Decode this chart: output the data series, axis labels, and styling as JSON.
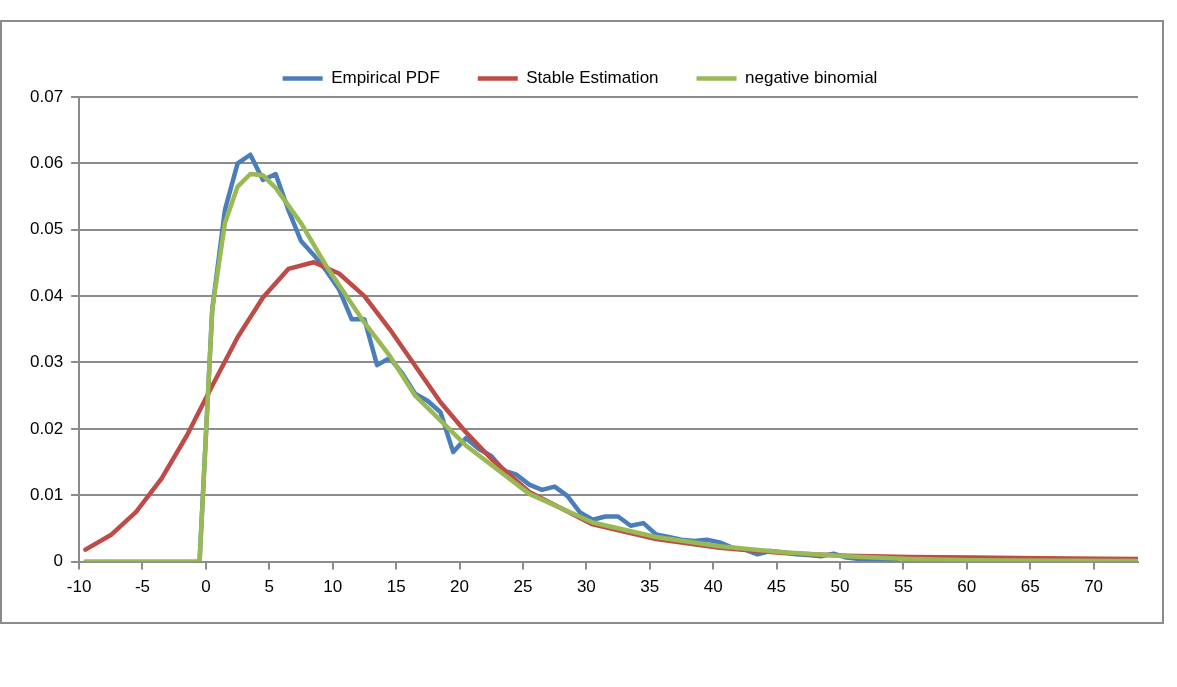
{
  "chart_data": {
    "type": "line",
    "xlim": [
      -10,
      73.5
    ],
    "xticks": [
      -10,
      -5,
      0,
      5,
      10,
      15,
      20,
      25,
      30,
      35,
      40,
      45,
      50,
      55,
      60,
      65,
      70
    ],
    "ylim": [
      0,
      0.07
    ],
    "yticks": [
      0,
      0.01,
      0.02,
      0.03,
      0.04,
      0.05,
      0.06,
      0.07
    ],
    "grid": "y",
    "legend": "top",
    "marker": "none",
    "line_style": "solid",
    "series": [
      {
        "name": "Empirical PDF",
        "color": "#4a7ebb",
        "x": [
          -0.5,
          0.5,
          1.5,
          2.5,
          3.5,
          4.5,
          5.5,
          6.5,
          7.5,
          8.5,
          9.5,
          10.5,
          11.5,
          12.5,
          13.5,
          14.5,
          15.5,
          16.5,
          17.5,
          18.5,
          19.5,
          20.5,
          21.5,
          22.5,
          23.5,
          24.5,
          25.5,
          26.5,
          27.5,
          28.5,
          29.5,
          30.5,
          31.5,
          32.5,
          33.5,
          34.5,
          35.5,
          36.5,
          37.5,
          38.5,
          39.5,
          40.5,
          41.5,
          42.5,
          43.5,
          44.5,
          45.5,
          46.5,
          47.5,
          48.5,
          49.5,
          50.5,
          51.5,
          52.5,
          53.5,
          54.5
        ],
        "values": [
          0,
          0.038,
          0.053,
          0.06,
          0.0613,
          0.0575,
          0.0584,
          0.053,
          0.0483,
          0.0462,
          0.0438,
          0.041,
          0.0365,
          0.0365,
          0.0296,
          0.0307,
          0.0283,
          0.0253,
          0.0242,
          0.0225,
          0.0165,
          0.0186,
          0.017,
          0.0159,
          0.0137,
          0.0131,
          0.0116,
          0.0108,
          0.0113,
          0.0099,
          0.0074,
          0.0063,
          0.0068,
          0.0068,
          0.0054,
          0.0058,
          0.0041,
          0.0037,
          0.0033,
          0.0031,
          0.0033,
          0.0029,
          0.0021,
          0.0018,
          0.0011,
          0.0016,
          0.0014,
          0.0011,
          0.001,
          0.0008,
          0.0012,
          0.0006,
          0.0004,
          0.0003,
          0.0003,
          0.0002
        ]
      },
      {
        "name": "Stable Estimation",
        "color": "#be4b48",
        "x": [
          -9.5,
          -7.5,
          -5.5,
          -3.5,
          -1.5,
          0.5,
          2.5,
          4.5,
          6.5,
          8.5,
          10.5,
          12.5,
          14.5,
          16.5,
          18.5,
          20.5,
          22.5,
          25.5,
          30.5,
          35.5,
          40.5,
          45.5,
          50.5,
          55.5,
          60.5,
          65.5,
          73.5
        ],
        "values": [
          0.0018,
          0.004,
          0.0075,
          0.0125,
          0.019,
          0.0265,
          0.0338,
          0.0398,
          0.0441,
          0.0451,
          0.0434,
          0.04,
          0.035,
          0.0295,
          0.024,
          0.0195,
          0.0155,
          0.0105,
          0.0056,
          0.0034,
          0.0021,
          0.0013,
          0.0009,
          0.0007,
          0.0006,
          0.0005,
          0.0004
        ]
      },
      {
        "name": "negative binomial",
        "color": "#98b954",
        "x": [
          -9.5,
          -0.5,
          0.5,
          1.5,
          2.5,
          3.5,
          4.5,
          5.5,
          7.5,
          9.5,
          12.5,
          14.5,
          16.5,
          20.5,
          25.5,
          30.5,
          35.5,
          40.5,
          45.5,
          50.5,
          55.5,
          60.5,
          73.5
        ],
        "values": [
          0,
          0,
          0.038,
          0.051,
          0.0565,
          0.0584,
          0.0582,
          0.0563,
          0.051,
          0.0445,
          0.036,
          0.031,
          0.025,
          0.0175,
          0.0102,
          0.0059,
          0.0037,
          0.0023,
          0.0014,
          0.0008,
          0.0004,
          0.0002,
          0.0001
        ]
      }
    ]
  }
}
